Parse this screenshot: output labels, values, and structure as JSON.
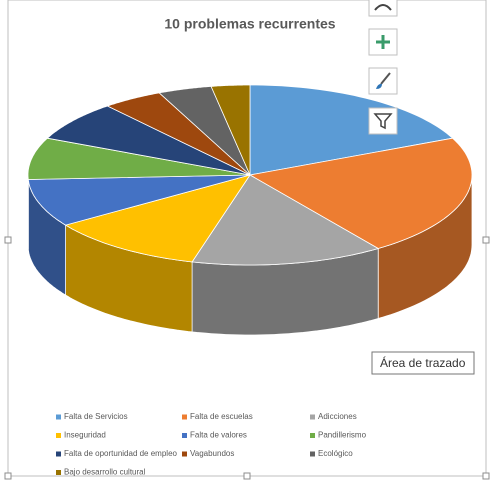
{
  "chart_data": {
    "type": "pie3d",
    "title": "10 problemas recurrentes",
    "categories": [
      "Falta de Servicios",
      "Falta de escuelas",
      "Adicciones",
      "Inseguridad",
      "Falta de valores",
      "Pandillerismo",
      "Falta de oportunidad de empleo",
      "Vagabundos",
      "Ecológico",
      "Bajo desarrollo cultural"
    ],
    "values": [
      18.3,
      21.9,
      14,
      11.4,
      8.6,
      7.5,
      7.2,
      4.4,
      3.9,
      2.8
    ],
    "colors": [
      "#5b9bd5",
      "#ed7d31",
      "#a5a5a5",
      "#ffc000",
      "#4472c4",
      "#70ad47",
      "#264478",
      "#9e480e",
      "#636363",
      "#997300"
    ],
    "legend": "bottom"
  },
  "tooltip": "Área de trazado"
}
